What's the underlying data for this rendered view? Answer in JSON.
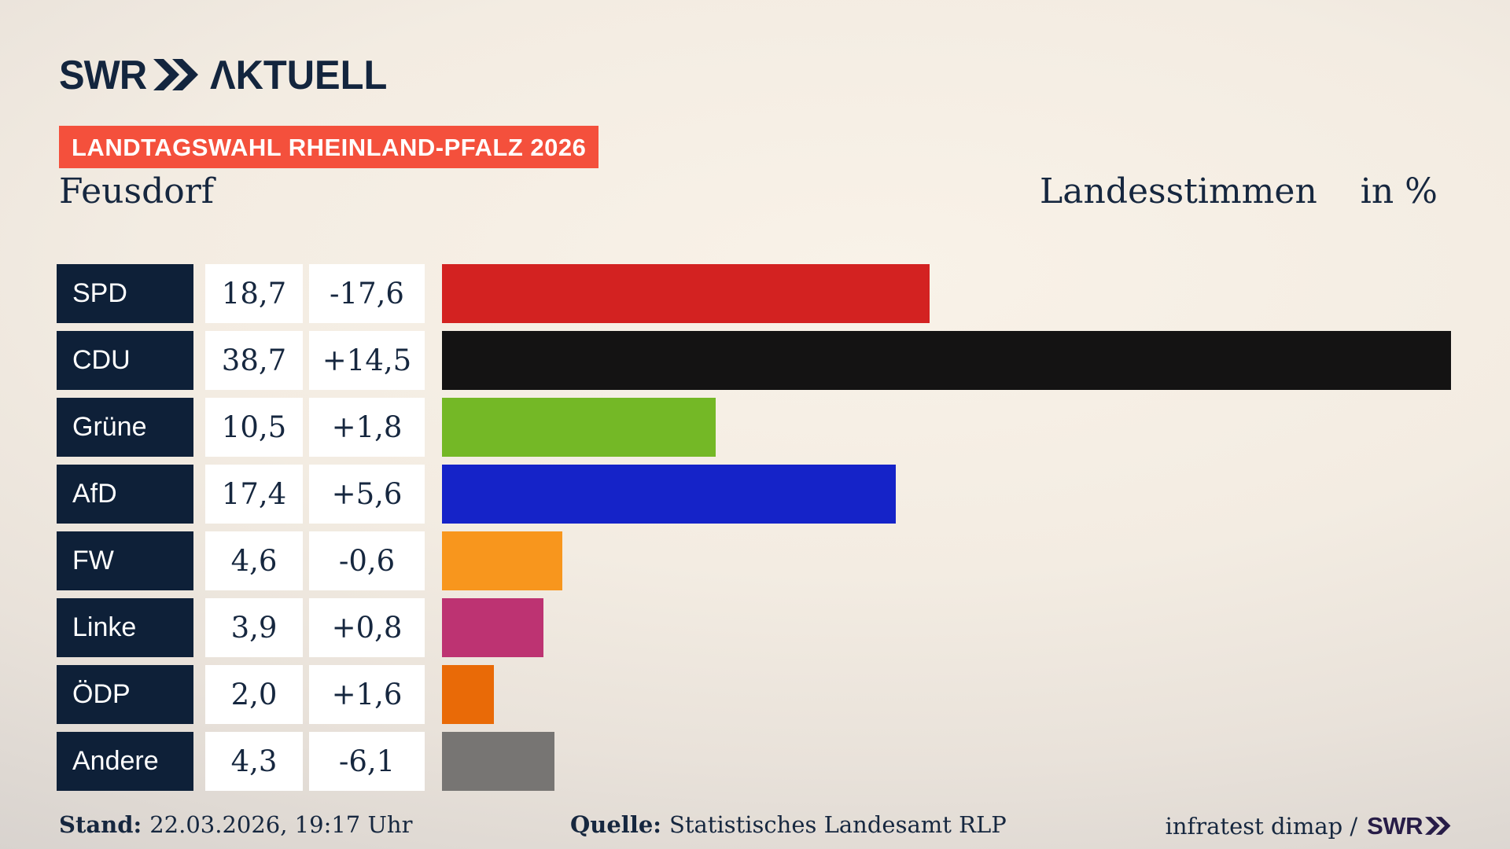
{
  "header": {
    "logo_swr": "SWR",
    "logo_aktuell": "ΛKTUELL",
    "banner": "LANDTAGSWAHL RHEINLAND-PFALZ 2026"
  },
  "title": {
    "location": "Feusdorf",
    "metric": "Landesstimmen",
    "unit": "in %"
  },
  "chart_data": {
    "type": "bar",
    "title": "Landtagswahl Rheinland-Pfalz 2026 — Feusdorf, Landesstimmen in %",
    "categories": [
      "SPD",
      "CDU",
      "Grüne",
      "AfD",
      "FW",
      "Linke",
      "ÖDP",
      "Andere"
    ],
    "values": [
      18.7,
      38.7,
      10.5,
      17.4,
      4.6,
      3.9,
      2.0,
      4.3
    ],
    "changes": [
      -17.6,
      14.5,
      1.8,
      5.6,
      -0.6,
      0.8,
      1.6,
      -6.1
    ],
    "xlabel": "",
    "ylabel": "Landesstimmen in %",
    "xlim": [
      0,
      38.7
    ],
    "grid": false,
    "legend": "none",
    "orientation": "horizontal",
    "bar_colors": [
      "#d32221",
      "#141313",
      "#74b826",
      "#1523c8",
      "#f8961d",
      "#bd3372",
      "#e96a07",
      "#777573"
    ]
  },
  "rows": [
    {
      "party": "SPD",
      "value": "18,7",
      "change": "-17,6",
      "color": "#d32221"
    },
    {
      "party": "CDU",
      "value": "38,7",
      "change": "+14,5",
      "color": "#141313"
    },
    {
      "party": "Grüne",
      "value": "10,5",
      "change": "+1,8",
      "color": "#74b826"
    },
    {
      "party": "AfD",
      "value": "17,4",
      "change": "+5,6",
      "color": "#1523c8"
    },
    {
      "party": "FW",
      "value": "4,6",
      "change": "-0,6",
      "color": "#f8961d"
    },
    {
      "party": "Linke",
      "value": "3,9",
      "change": "+0,8",
      "color": "#bd3372"
    },
    {
      "party": "ÖDP",
      "value": "2,0",
      "change": "+1,6",
      "color": "#e96a07"
    },
    {
      "party": "Andere",
      "value": "4,3",
      "change": "-6,1",
      "color": "#777573"
    }
  ],
  "footer": {
    "stand_label": "Stand:",
    "stand_value": "22.03.2026, 19:17 Uhr",
    "quelle_label": "Quelle:",
    "quelle_value": "Statistisches Landesamt RLP",
    "credit_text": "infratest dimap /",
    "credit_logo": "SWR"
  },
  "colors": {
    "background": "#f3ece2",
    "navy": "#0e2038",
    "banner_red": "#f4503c",
    "text_navy": "#16273f",
    "footer_logo": "#271c47"
  }
}
